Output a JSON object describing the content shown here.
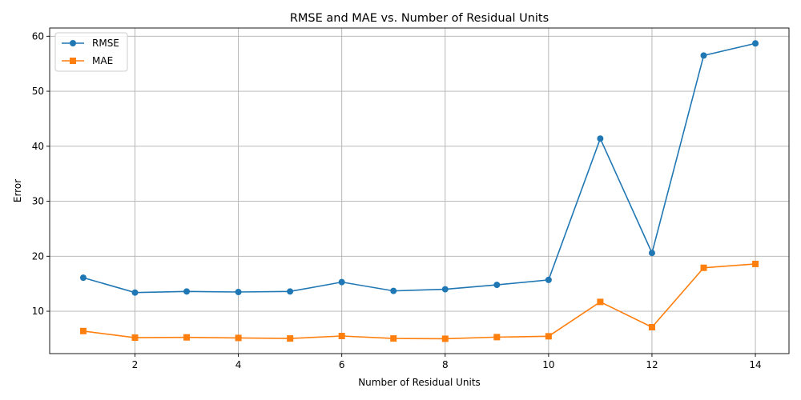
{
  "chart_data": {
    "type": "line",
    "title": "RMSE and MAE vs. Number of Residual Units",
    "xlabel": "Number of Residual Units",
    "ylabel": "Error",
    "x": [
      1,
      2,
      3,
      4,
      5,
      6,
      7,
      8,
      9,
      10,
      11,
      12,
      13,
      14
    ],
    "xlim": [
      0.35,
      14.65
    ],
    "ylim": [
      2.3,
      61.5
    ],
    "xticks": [
      2,
      4,
      6,
      8,
      10,
      12,
      14
    ],
    "yticks": [
      10,
      20,
      30,
      40,
      50,
      60
    ],
    "grid": true,
    "legend_position": "top-left",
    "series": [
      {
        "name": "RMSE",
        "color": "#1f77b4",
        "marker": "circle",
        "values": [
          16.1,
          13.4,
          13.6,
          13.5,
          13.6,
          15.3,
          13.7,
          14.0,
          14.8,
          15.7,
          41.4,
          20.6,
          56.5,
          58.7
        ]
      },
      {
        "name": "MAE",
        "color": "#ff7f0e",
        "marker": "square",
        "values": [
          6.4,
          5.2,
          5.25,
          5.15,
          5.05,
          5.5,
          5.05,
          5.0,
          5.3,
          5.45,
          11.7,
          7.1,
          17.9,
          18.6
        ]
      }
    ]
  }
}
